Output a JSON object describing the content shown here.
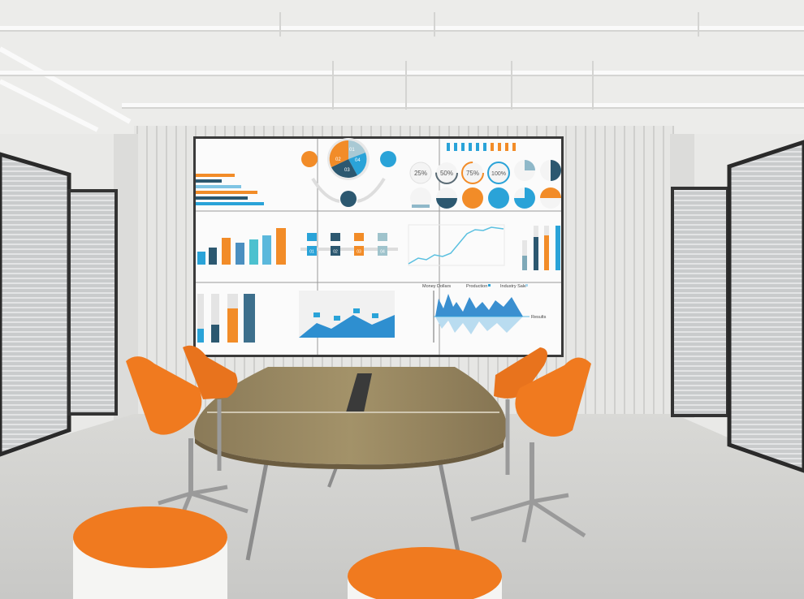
{
  "video_wall": {
    "gauges": [
      "25%",
      "50%",
      "75%",
      "100%"
    ],
    "pie_segments": [
      "01",
      "02",
      "03",
      "04"
    ],
    "steps": [
      "01",
      "02",
      "03",
      "04"
    ],
    "wave_chart": {
      "label_y": "Money Dollars",
      "legend": [
        "Production",
        "Industry Sale"
      ],
      "label_x": "Results"
    }
  },
  "colors": {
    "orange": "#f28c28",
    "blue": "#2aa3d8",
    "navy": "#2c5870",
    "light_blue": "#7fc4e4",
    "chair_orange": "#f07a1f"
  }
}
